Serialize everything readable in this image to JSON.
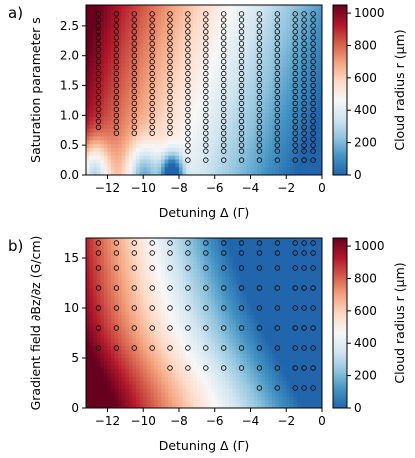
{
  "chart_data": [
    {
      "type": "heatmap",
      "panel_label": "a)",
      "xlabel": "Detuning Δ (Γ)",
      "ylabel": "Saturation parameter s",
      "xlim": [
        -13.2,
        0
      ],
      "ylim": [
        0,
        2.85
      ],
      "x_ticks": [
        -12,
        -10,
        -8,
        -6,
        -4,
        -2,
        0
      ],
      "x_tick_labels": [
        "−12",
        "−10",
        "−8",
        "−6",
        "−4",
        "−2",
        "0"
      ],
      "y_ticks": [
        0.0,
        0.5,
        1.0,
        1.5,
        2.0,
        2.5
      ],
      "y_tick_labels": [
        "0.0",
        "0.5",
        "1.0",
        "1.5",
        "2.0",
        "2.5"
      ],
      "colorbar": {
        "label": "Cloud radius r (μm)",
        "range": [
          0,
          1050
        ],
        "ticks": [
          0,
          200,
          400,
          600,
          800,
          1000
        ],
        "tick_labels": [
          "0",
          "200",
          "400",
          "600",
          "800",
          "1000"
        ],
        "colormap": "RdBu_r",
        "colors": [
          "#2166ac",
          "#4393c3",
          "#92c5de",
          "#d1e5f0",
          "#f7f7f7",
          "#fddbc7",
          "#f4a582",
          "#d6604d",
          "#b2182b",
          "#67001f"
        ]
      },
      "samples": {
        "description_of_grid": "measurement points (circles filled with measured radius color)",
        "detunings": [
          -12.5,
          -11.5,
          -10.5,
          -9.5,
          -8.5,
          -7.5,
          -6.5,
          -5.5,
          -4.5,
          -3.5,
          -2.5,
          -1.5,
          -1.0,
          -0.5
        ],
        "saturation_levels": [
          0.25,
          0.4,
          0.5,
          0.6,
          0.7,
          0.8,
          0.9,
          1.0,
          1.1,
          1.2,
          1.3,
          1.4,
          1.5,
          1.6,
          1.7,
          1.8,
          1.9,
          2.0,
          2.1,
          2.2,
          2.3,
          2.4,
          2.5,
          2.6,
          2.7
        ]
      }
    },
    {
      "type": "heatmap",
      "panel_label": "b)",
      "xlabel": "Detuning Δ (Γ)",
      "ylabel": "Gradient field ∂Bz/∂z (G/cm)",
      "xlim": [
        -13.2,
        0
      ],
      "ylim": [
        0,
        17
      ],
      "x_ticks": [
        -12,
        -10,
        -8,
        -6,
        -4,
        -2,
        0
      ],
      "x_tick_labels": [
        "−12",
        "−10",
        "−8",
        "−6",
        "−4",
        "−2",
        "0"
      ],
      "y_ticks": [
        0,
        5,
        10,
        15
      ],
      "y_tick_labels": [
        "0",
        "5",
        "10",
        "15"
      ],
      "colorbar": {
        "label": "Cloud radius r (μm)",
        "range": [
          0,
          1050
        ],
        "ticks": [
          0,
          200,
          400,
          600,
          800,
          1000
        ],
        "tick_labels": [
          "0",
          "200",
          "400",
          "600",
          "800",
          "1000"
        ],
        "colormap": "RdBu_r",
        "colors": [
          "#2166ac",
          "#4393c3",
          "#92c5de",
          "#d1e5f0",
          "#f7f7f7",
          "#fddbc7",
          "#f4a582",
          "#d6604d",
          "#b2182b",
          "#67001f"
        ]
      },
      "samples": {
        "detunings": [
          -12.5,
          -11.5,
          -10.5,
          -9.5,
          -8.5,
          -7.5,
          -6.5,
          -5.5,
          -4.5,
          -3.5,
          -2.5,
          -1.5,
          -1.0,
          -0.5
        ],
        "gradient_levels": [
          2,
          4,
          6,
          8,
          10,
          12,
          14,
          15.5,
          16.5
        ]
      }
    }
  ]
}
